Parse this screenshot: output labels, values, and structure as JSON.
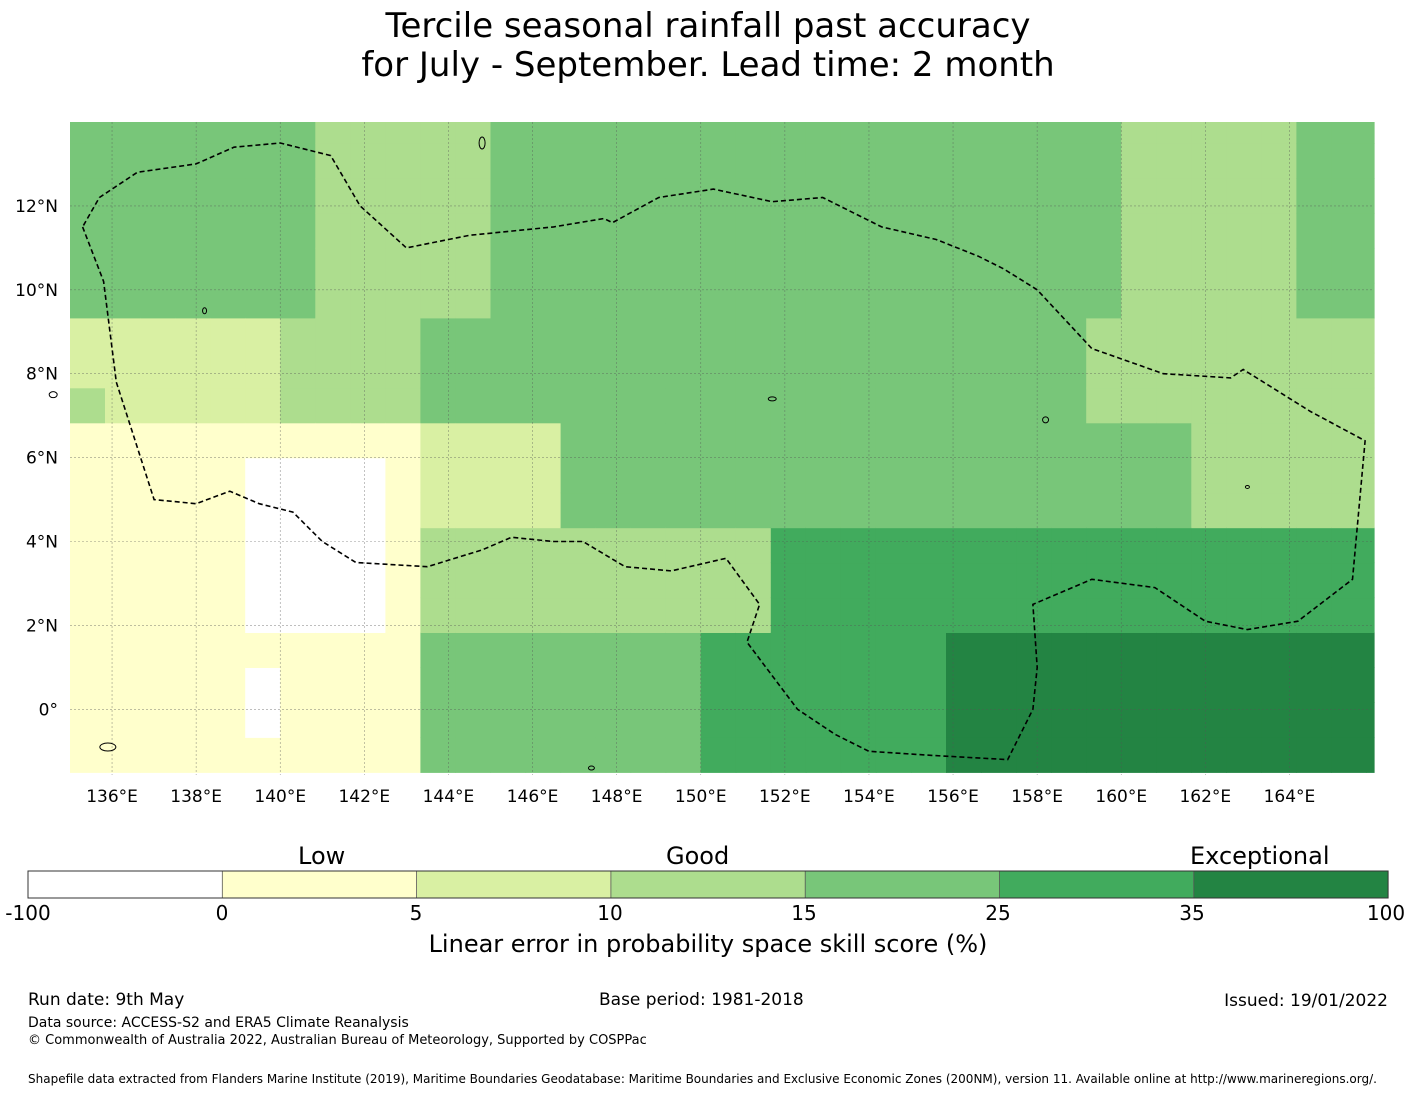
{
  "title": {
    "line1": "Tercile seasonal rainfall past accuracy",
    "line2": "for July - September. Lead time: 2 month"
  },
  "map": {
    "lon_range": [
      135,
      166
    ],
    "lat_range": [
      -1.5,
      14
    ],
    "x_ticks": [
      "136°E",
      "138°E",
      "140°E",
      "142°E",
      "144°E",
      "146°E",
      "148°E",
      "150°E",
      "152°E",
      "154°E",
      "156°E",
      "158°E",
      "160°E",
      "162°E",
      "164°E"
    ],
    "y_ticks": [
      "12°N",
      "10°N",
      "8°N",
      "6°N",
      "4°N",
      "2°N",
      "0°"
    ],
    "grid": true,
    "boundary_style": "dashed black line (EEZ)"
  },
  "colorbar": {
    "categories": [
      "Low",
      "Good",
      "Exceptional"
    ],
    "bins": [
      {
        "from": -100,
        "to": 0,
        "color": "#ffffff"
      },
      {
        "from": 0,
        "to": 5,
        "color": "#ffffcc"
      },
      {
        "from": 5,
        "to": 10,
        "color": "#d9f0a3"
      },
      {
        "from": 10,
        "to": 15,
        "color": "#addd8e"
      },
      {
        "from": 15,
        "to": 25,
        "color": "#78c679"
      },
      {
        "from": 25,
        "to": 35,
        "color": "#41ab5d"
      },
      {
        "from": 35,
        "to": 100,
        "color": "#238443"
      }
    ],
    "tick_labels": [
      "-100",
      "0",
      "5",
      "10",
      "15",
      "25",
      "35",
      "100"
    ],
    "label": "Linear error in probability space skill score (%)"
  },
  "footer": {
    "run_date": "Run date: 9th May",
    "base_period": "Base period: 1981-2018",
    "issued": "Issued: 19/01/2022",
    "data_source": "Data source: ACCESS-S2 and ERA5 Climate Reanalysis",
    "copyright": "© Commonwealth of Australia 2022, Australian Bureau of Meteorology, Supported by COSPPac",
    "shapefile": "Shapefile data extracted from Flanders Marine Institute (2019), Maritime Boundaries Geodatabase: Maritime Boundaries and Exclusive Economic Zones (200NM), version 11. Available online at http://www.marineregions.org/."
  }
}
